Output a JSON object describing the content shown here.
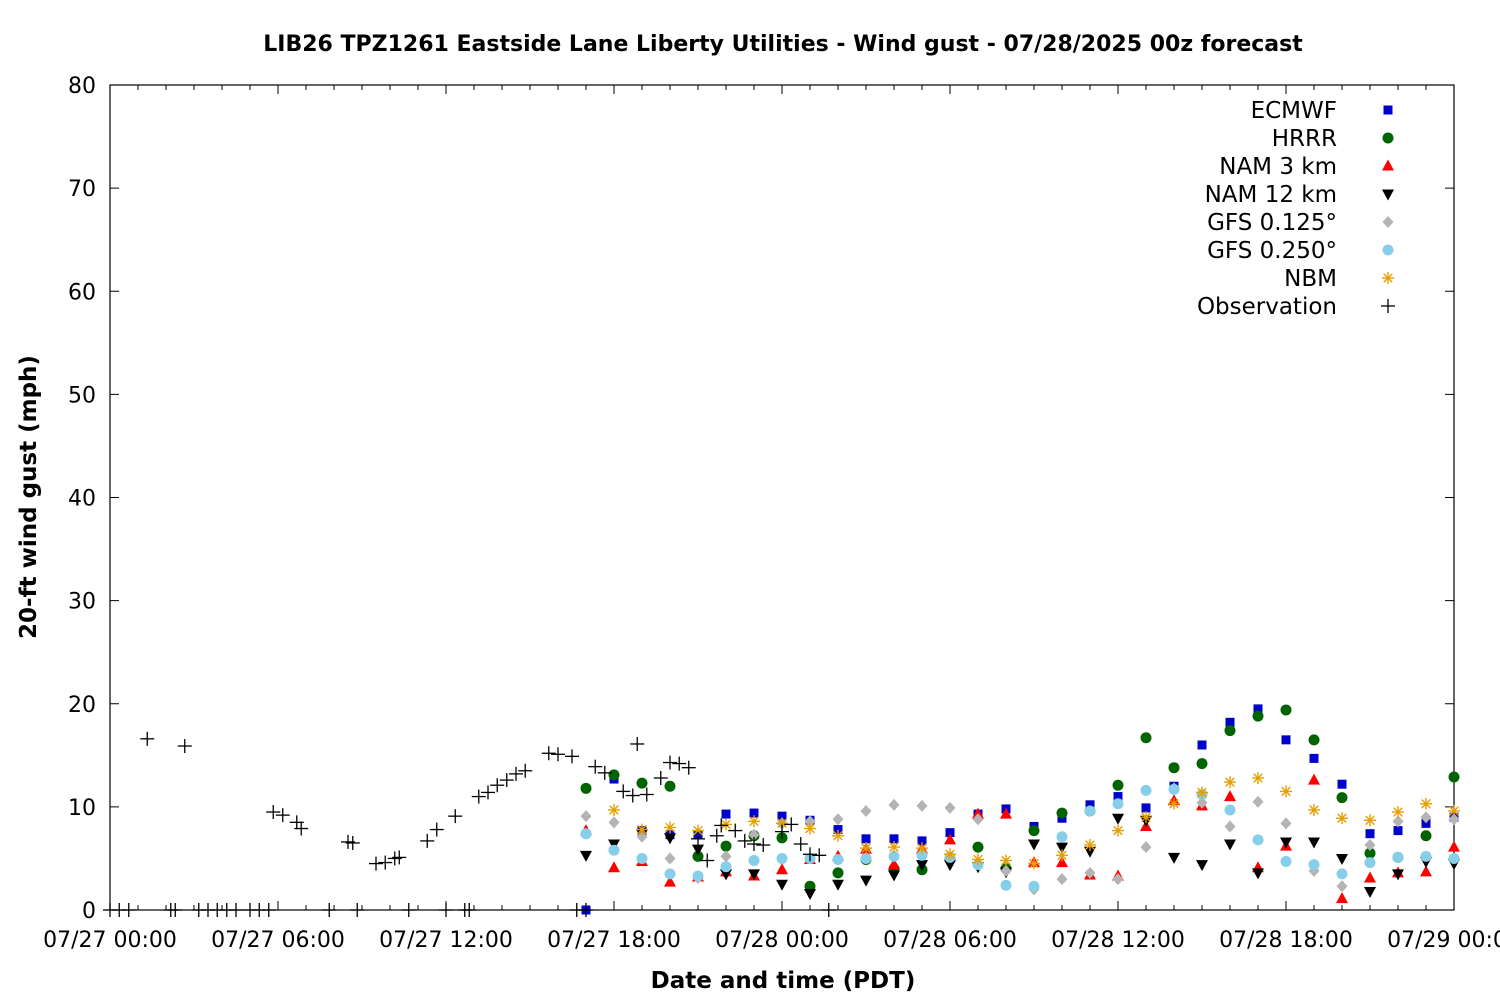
{
  "chart_data": {
    "type": "scatter",
    "title": "LIB26 TPZ1261 Eastside Lane Liberty Utilities - Wind gust - 07/28/2025 00z forecast",
    "xlabel": "Date and time (PDT)",
    "ylabel": "20-ft wind gust (mph)",
    "x_unit": "hours since 07/27 00:00 PDT",
    "xlim": [
      0,
      48
    ],
    "ylim": [
      0,
      80
    ],
    "y_ticks": [
      0,
      10,
      20,
      30,
      40,
      50,
      60,
      70,
      80
    ],
    "x_ticks": [
      {
        "x": 0,
        "label": "07/27 00:00"
      },
      {
        "x": 6,
        "label": "07/27 06:00"
      },
      {
        "x": 12,
        "label": "07/27 12:00"
      },
      {
        "x": 18,
        "label": "07/27 18:00"
      },
      {
        "x": 24,
        "label": "07/28 00:00"
      },
      {
        "x": 30,
        "label": "07/28 06:00"
      },
      {
        "x": 36,
        "label": "07/28 12:00"
      },
      {
        "x": 42,
        "label": "07/28 18:00"
      },
      {
        "x": 48,
        "label": "07/29 00:00"
      }
    ],
    "grid": false,
    "legend_position": "top-right",
    "series": [
      {
        "name": "ECMWF",
        "marker": "square",
        "color": "#0000cc",
        "x": [
          17,
          18,
          19,
          20,
          21,
          22,
          23,
          24,
          25,
          26,
          27,
          28,
          29,
          30,
          31,
          32,
          33,
          34,
          35,
          36,
          37,
          38,
          39,
          40,
          41,
          42,
          43,
          44,
          45,
          46,
          47,
          48
        ],
        "y": [
          0,
          12.7,
          7.7,
          7.3,
          7.3,
          9.3,
          9.4,
          9.1,
          8.7,
          7.8,
          6.9,
          6.9,
          6.7,
          7.5,
          9.3,
          9.8,
          8.1,
          8.9,
          10.2,
          11.0,
          9.9,
          12.0,
          16.0,
          18.2,
          19.5,
          16.5,
          14.7,
          12.2,
          7.4,
          7.7,
          8.4,
          9.0
        ]
      },
      {
        "name": "HRRR",
        "marker": "circle",
        "color": "#006400",
        "x": [
          17,
          18,
          19,
          20,
          21,
          22,
          23,
          24,
          25,
          26,
          27,
          28,
          29,
          30,
          31,
          32,
          33,
          34,
          35,
          36,
          37,
          38,
          39,
          40,
          41,
          42,
          43,
          44,
          45,
          46,
          47,
          48
        ],
        "y": [
          11.8,
          13.1,
          12.3,
          12.0,
          5.2,
          6.2,
          7.2,
          7.0,
          2.3,
          3.6,
          4.9,
          4.0,
          3.9,
          5.0,
          6.1,
          4.0,
          7.7,
          9.4,
          9.6,
          12.1,
          16.7,
          13.8,
          14.2,
          17.4,
          18.8,
          19.4,
          16.5,
          10.9,
          5.5,
          5.1,
          7.2,
          12.9
        ]
      },
      {
        "name": "NAM 3 km",
        "marker": "triangle-up",
        "color": "#ff0000",
        "x": [
          17,
          18,
          19,
          20,
          21,
          22,
          23,
          24,
          25,
          26,
          27,
          28,
          29,
          30,
          31,
          32,
          33,
          34,
          35,
          36,
          37,
          38,
          39,
          40,
          41,
          42,
          43,
          44,
          45,
          46,
          47,
          48
        ],
        "y": [
          7.7,
          4.1,
          4.7,
          2.7,
          3.2,
          3.7,
          3.3,
          3.9,
          4.9,
          5.2,
          5.9,
          4.4,
          5.9,
          6.8,
          9.3,
          9.3,
          4.6,
          4.6,
          3.4,
          3.3,
          8.1,
          10.6,
          10.1,
          11.0,
          4.1,
          6.2,
          12.6,
          1.1,
          3.1,
          3.6,
          3.7,
          6.1
        ]
      },
      {
        "name": "NAM 12 km",
        "marker": "triangle-down",
        "color": "#000000",
        "x": [
          17,
          18,
          19,
          20,
          21,
          22,
          23,
          24,
          25,
          26,
          27,
          28,
          29,
          30,
          31,
          32,
          33,
          34,
          35,
          36,
          37,
          38,
          39,
          40,
          41,
          42,
          43,
          44,
          45,
          46,
          47,
          48
        ],
        "y": [
          5.3,
          6.4,
          7.4,
          7.0,
          5.9,
          3.5,
          3.5,
          2.5,
          1.6,
          2.5,
          2.9,
          3.4,
          4.4,
          4.4,
          4.2,
          3.7,
          6.4,
          6.1,
          5.7,
          8.9,
          8.7,
          5.1,
          4.4,
          6.4,
          3.6,
          6.6,
          6.6,
          5.0,
          1.8,
          3.5,
          4.7,
          4.5
        ]
      },
      {
        "name": "GFS 0.125°",
        "marker": "diamond",
        "color": "#b4b4b4",
        "x": [
          17,
          18,
          19,
          20,
          21,
          22,
          23,
          24,
          25,
          26,
          27,
          28,
          29,
          30,
          31,
          32,
          33,
          34,
          35,
          36,
          37,
          38,
          39,
          40,
          41,
          42,
          43,
          44,
          45,
          46,
          47,
          48
        ],
        "y": [
          9.1,
          8.5,
          7.1,
          5.0,
          3.1,
          5.2,
          7.3,
          8.4,
          8.6,
          8.8,
          9.6,
          10.2,
          10.1,
          9.9,
          8.8,
          3.8,
          2.0,
          3.0,
          3.6,
          3.0,
          6.1,
          11.8,
          10.4,
          8.1,
          10.5,
          8.4,
          3.8,
          2.3,
          6.3,
          8.6,
          9.0,
          8.8
        ]
      },
      {
        "name": "GFS 0.250°",
        "marker": "circle",
        "color": "#87ceeb",
        "x": [
          17,
          18,
          19,
          20,
          21,
          22,
          23,
          24,
          25,
          26,
          27,
          28,
          29,
          30,
          31,
          32,
          33,
          34,
          35,
          36,
          37,
          38,
          39,
          40,
          41,
          42,
          43,
          44,
          45,
          46,
          47,
          48
        ],
        "y": [
          7.4,
          5.8,
          5.0,
          3.5,
          3.3,
          4.2,
          4.8,
          5.0,
          5.0,
          4.9,
          5.0,
          5.2,
          5.3,
          5.1,
          4.4,
          2.4,
          2.3,
          7.1,
          9.6,
          10.3,
          11.6,
          11.7,
          11.2,
          9.7,
          6.8,
          4.7,
          4.4,
          3.5,
          4.6,
          5.1,
          5.2,
          5.0
        ]
      },
      {
        "name": "NBM",
        "marker": "asterisk",
        "color": "#e69f00",
        "x": [
          18,
          19,
          20,
          21,
          22,
          23,
          24,
          25,
          26,
          27,
          28,
          29,
          30,
          31,
          32,
          33,
          34,
          35,
          36,
          37,
          38,
          39,
          40,
          41,
          42,
          43,
          44,
          45,
          46,
          47,
          48
        ],
        "y": [
          9.7,
          7.8,
          8.0,
          7.7,
          8.3,
          8.6,
          8.4,
          7.9,
          7.2,
          6.0,
          6.1,
          6.0,
          5.4,
          4.9,
          4.8,
          4.5,
          5.3,
          6.3,
          7.7,
          9.0,
          10.3,
          11.4,
          12.4,
          12.8,
          11.5,
          9.7,
          8.9,
          8.7,
          9.5,
          10.3,
          9.6
        ]
      },
      {
        "name": "Observation",
        "marker": "plus",
        "color": "#000000",
        "x": [
          0.0,
          0.33,
          0.67,
          1.33,
          2.17,
          2.33,
          2.67,
          3.17,
          3.5,
          3.83,
          4.17,
          4.5,
          5.0,
          5.33,
          5.67,
          5.83,
          6.17,
          6.67,
          6.83,
          7.83,
          8.5,
          8.67,
          8.83,
          9.5,
          9.83,
          10.17,
          10.33,
          10.67,
          11.33,
          11.67,
          12.0,
          12.33,
          12.67,
          12.83,
          13.17,
          13.5,
          13.83,
          14.17,
          14.5,
          14.83,
          15.67,
          16.0,
          16.5,
          16.67,
          17.0,
          17.33,
          17.67,
          18.33,
          18.67,
          18.83,
          19.17,
          19.67,
          20.0,
          20.33,
          20.67,
          21.0,
          21.33,
          21.67,
          21.83,
          22.33,
          22.67,
          23.0,
          23.33,
          24.0,
          24.33,
          24.67,
          25.0,
          25.33,
          25.67
        ],
        "y": [
          0,
          0,
          0,
          16.6,
          0,
          0,
          15.9,
          0,
          0,
          0,
          0,
          0,
          0,
          0,
          0,
          9.5,
          9.2,
          8.5,
          7.9,
          0,
          6.6,
          6.5,
          0,
          4.5,
          4.6,
          5.0,
          5.1,
          0,
          6.7,
          7.8,
          0,
          9.1,
          0,
          0,
          11.0,
          11.4,
          12.1,
          12.6,
          13.2,
          13.5,
          15.2,
          15.1,
          14.9,
          0,
          0,
          13.9,
          13.3,
          11.5,
          11.1,
          16.1,
          11.2,
          12.8,
          14.3,
          14.2,
          13.8,
          6.9,
          4.8,
          7.2,
          8.2,
          7.7,
          6.7,
          6.4,
          6.3,
          7.6,
          8.3,
          6.4,
          5.4,
          5.3,
          0
        ]
      }
    ]
  }
}
